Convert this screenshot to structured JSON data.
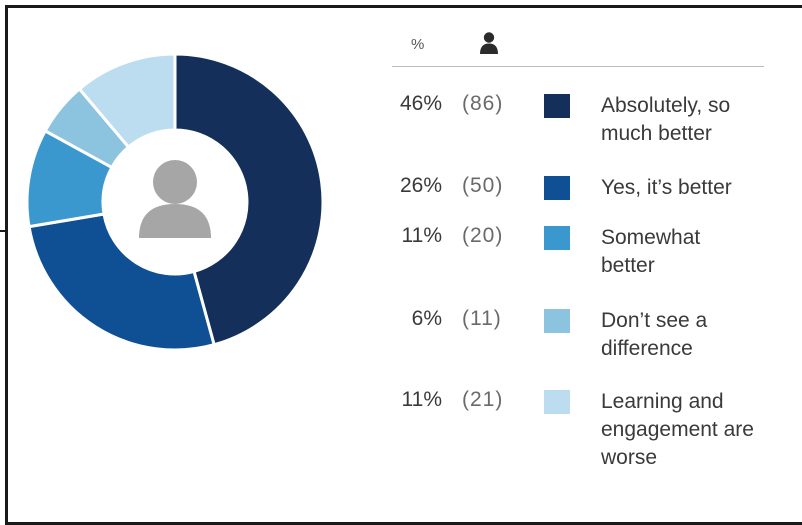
{
  "chart_data": {
    "type": "pie",
    "variant": "donut",
    "header": {
      "percent_label": "%",
      "count_icon": "person-icon"
    },
    "center_icon": "person-icon",
    "slices": [
      {
        "label": "Absolutely, so much better",
        "percent": 46,
        "percent_text": "46%",
        "count": 86,
        "count_text": "(86)",
        "color": "#14305a"
      },
      {
        "label": "Yes, it’s better",
        "percent": 26,
        "percent_text": "26%",
        "count": 50,
        "count_text": "(50)",
        "color": "#0f4f94"
      },
      {
        "label": "Somewhat better",
        "percent": 11,
        "percent_text": "11%",
        "count": 20,
        "count_text": "(20)",
        "color": "#3a98cf"
      },
      {
        "label": "Don’t see a difference",
        "percent": 6,
        "percent_text": "6%",
        "count": 11,
        "count_text": "(11)",
        "color": "#8cc4e0"
      },
      {
        "label": "Learning and engagement are worse",
        "percent": 11,
        "percent_text": "11%",
        "count": 21,
        "count_text": "(21)",
        "color": "#bcdcef"
      }
    ]
  }
}
